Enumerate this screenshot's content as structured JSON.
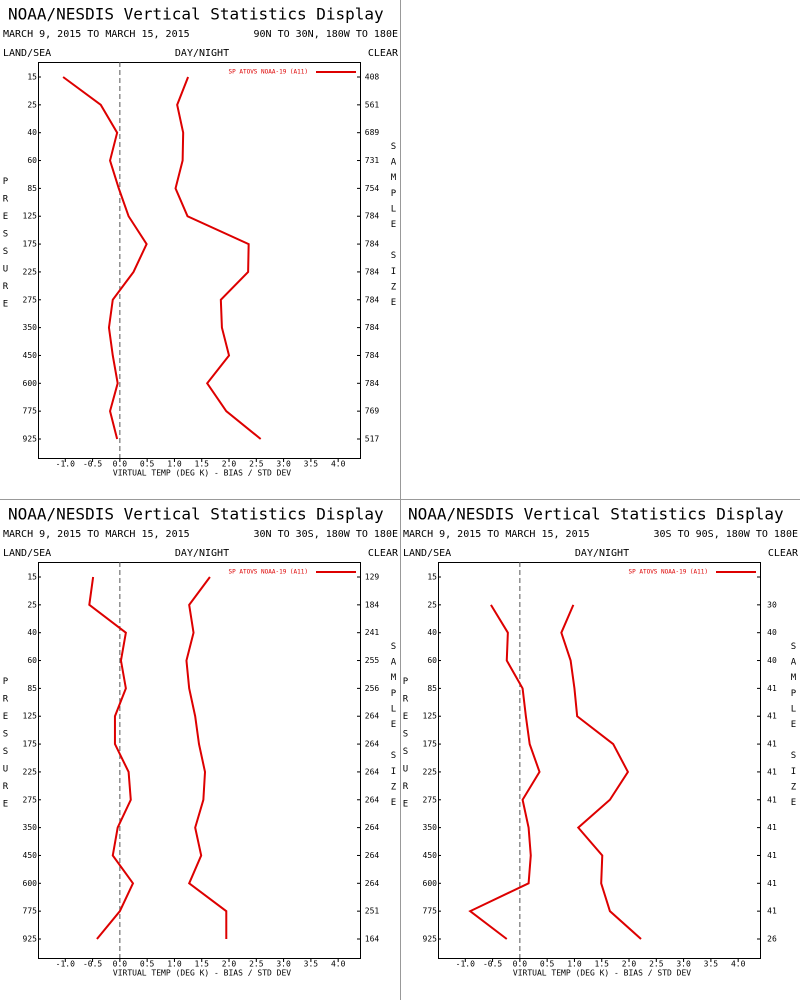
{
  "chart_data": [
    {
      "type": "line",
      "title": "NOAA/NESDIS Vertical Statistics Display",
      "subtitle": "MARCH 9, 2015 TO MARCH 15, 2015",
      "region": "90N TO 30N, 180W TO 180E",
      "land_sea": "LAND/SEA",
      "day_night": "DAY/NIGHT",
      "clear": "CLEAR",
      "y_label": "PRESSURE",
      "y2_label": "SAMPLE SIZE",
      "x_label": "VIRTUAL TEMP (DEG K) - BIAS / STD DEV",
      "categories": [
        15,
        25,
        40,
        60,
        85,
        125,
        175,
        225,
        275,
        350,
        450,
        600,
        775,
        925
      ],
      "sample_size": [
        408,
        561,
        689,
        731,
        754,
        784,
        784,
        784,
        784,
        784,
        784,
        784,
        769,
        517
      ],
      "series": [
        {
          "name": "SP ATOVS NOAA-19 (A11)",
          "color": "#dd0000",
          "values": [
            -1.04,
            -0.35,
            -0.05,
            -0.18,
            -0.02,
            0.16,
            0.49,
            0.25,
            -0.13,
            -0.2,
            -0.13,
            -0.04,
            -0.18,
            -0.05
          ],
          "std_dev": [
            1.25,
            1.05,
            1.16,
            1.15,
            1.02,
            1.24,
            2.36,
            2.35,
            1.85,
            1.87,
            2.0,
            1.6,
            1.95,
            2.58
          ]
        }
      ],
      "xlim": [
        -1.5,
        4.4
      ],
      "xticks": [
        {
          "value": -1,
          "label": "-1.0"
        },
        {
          "value": -0.5,
          "label": "-0.5"
        },
        {
          "value": 0,
          "label": "0.0"
        },
        {
          "value": 0.5,
          "label": "0.5"
        },
        {
          "value": 1,
          "label": "1.0"
        },
        {
          "value": 1.5,
          "label": "1.5"
        },
        {
          "value": 2,
          "label": "2.0"
        },
        {
          "value": 2.5,
          "label": "2.5"
        },
        {
          "value": 3,
          "label": "3.0"
        },
        {
          "value": 3.5,
          "label": "3.5"
        },
        {
          "value": 4,
          "label": "4.0"
        }
      ]
    },
    {
      "type": "line",
      "title": "NOAA/NESDIS Vertical Statistics Display",
      "subtitle": "MARCH 9, 2015 TO MARCH 15, 2015",
      "region": "30N TO 30S, 180W TO 180E",
      "land_sea": "LAND/SEA",
      "day_night": "DAY/NIGHT",
      "clear": "CLEAR",
      "y_label": "PRESSURE",
      "y2_label": "SAMPLE SIZE",
      "x_label": "VIRTUAL TEMP (DEG K) - BIAS / STD DEV",
      "categories": [
        15,
        25,
        40,
        60,
        85,
        125,
        175,
        225,
        275,
        350,
        450,
        600,
        775,
        925
      ],
      "sample_size": [
        129,
        184,
        241,
        255,
        256,
        264,
        264,
        264,
        264,
        264,
        264,
        264,
        251,
        164
      ],
      "series": [
        {
          "name": "SP ATOVS NOAA-19 (A11)",
          "color": "#dd0000",
          "values": [
            -0.49,
            -0.56,
            0.11,
            0.02,
            0.11,
            -0.09,
            -0.09,
            0.16,
            0.2,
            -0.04,
            -0.13,
            0.24,
            0.0,
            -0.42
          ],
          "std_dev": [
            1.65,
            1.27,
            1.35,
            1.22,
            1.27,
            1.38,
            1.45,
            1.56,
            1.53,
            1.38,
            1.49,
            1.27,
            1.95,
            1.95
          ]
        }
      ],
      "xlim": [
        -1.5,
        4.4
      ],
      "xticks": [
        {
          "value": -1,
          "label": "-1.0"
        },
        {
          "value": -0.5,
          "label": "-0.5"
        },
        {
          "value": 0,
          "label": "0.0"
        },
        {
          "value": 0.5,
          "label": "0.5"
        },
        {
          "value": 1,
          "label": "1.0"
        },
        {
          "value": 1.5,
          "label": "1.5"
        },
        {
          "value": 2,
          "label": "2.0"
        },
        {
          "value": 2.5,
          "label": "2.5"
        },
        {
          "value": 3,
          "label": "3.0"
        },
        {
          "value": 3.5,
          "label": "3.5"
        },
        {
          "value": 4,
          "label": "4.0"
        }
      ]
    },
    {
      "type": "line",
      "title": "NOAA/NESDIS Vertical Statistics Display",
      "subtitle": "MARCH 9, 2015 TO MARCH 15, 2015",
      "region": "30S TO 90S, 180W TO 180E",
      "land_sea": "LAND/SEA",
      "day_night": "DAY/NIGHT",
      "clear": "CLEAR",
      "y_label": "PRESSURE",
      "y2_label": "SAMPLE SIZE",
      "x_label": "VIRTUAL TEMP (DEG K) - BIAS / STD DEV",
      "categories": [
        15,
        25,
        40,
        60,
        85,
        125,
        175,
        225,
        275,
        350,
        450,
        600,
        775,
        925
      ],
      "sample_size": [
        null,
        30,
        40,
        40,
        41,
        41,
        41,
        41,
        41,
        41,
        41,
        41,
        41,
        26
      ],
      "series": [
        {
          "name": "SP ATOVS NOAA-19 (A11)",
          "color": "#dd0000",
          "values": [
            null,
            -0.53,
            -0.22,
            -0.24,
            0.05,
            0.11,
            0.18,
            0.36,
            0.05,
            0.16,
            0.2,
            0.16,
            -0.91,
            -0.24
          ],
          "std_dev": [
            null,
            0.98,
            0.76,
            0.93,
            1.0,
            1.05,
            1.71,
            1.98,
            1.65,
            1.07,
            1.51,
            1.49,
            1.65,
            2.22
          ]
        }
      ],
      "xlim": [
        -1.5,
        4.4
      ],
      "xticks": [
        {
          "value": -1,
          "label": "-1.0"
        },
        {
          "value": -0.5,
          "label": "-0.5"
        },
        {
          "value": 0,
          "label": "0.0"
        },
        {
          "value": 0.5,
          "label": "0.5"
        },
        {
          "value": 1,
          "label": "1.0"
        },
        {
          "value": 1.5,
          "label": "1.5"
        },
        {
          "value": 2,
          "label": "2.0"
        },
        {
          "value": 2.5,
          "label": "2.5"
        },
        {
          "value": 3,
          "label": "3.0"
        },
        {
          "value": 3.5,
          "label": "3.5"
        },
        {
          "value": 4,
          "label": "4.0"
        }
      ]
    }
  ]
}
